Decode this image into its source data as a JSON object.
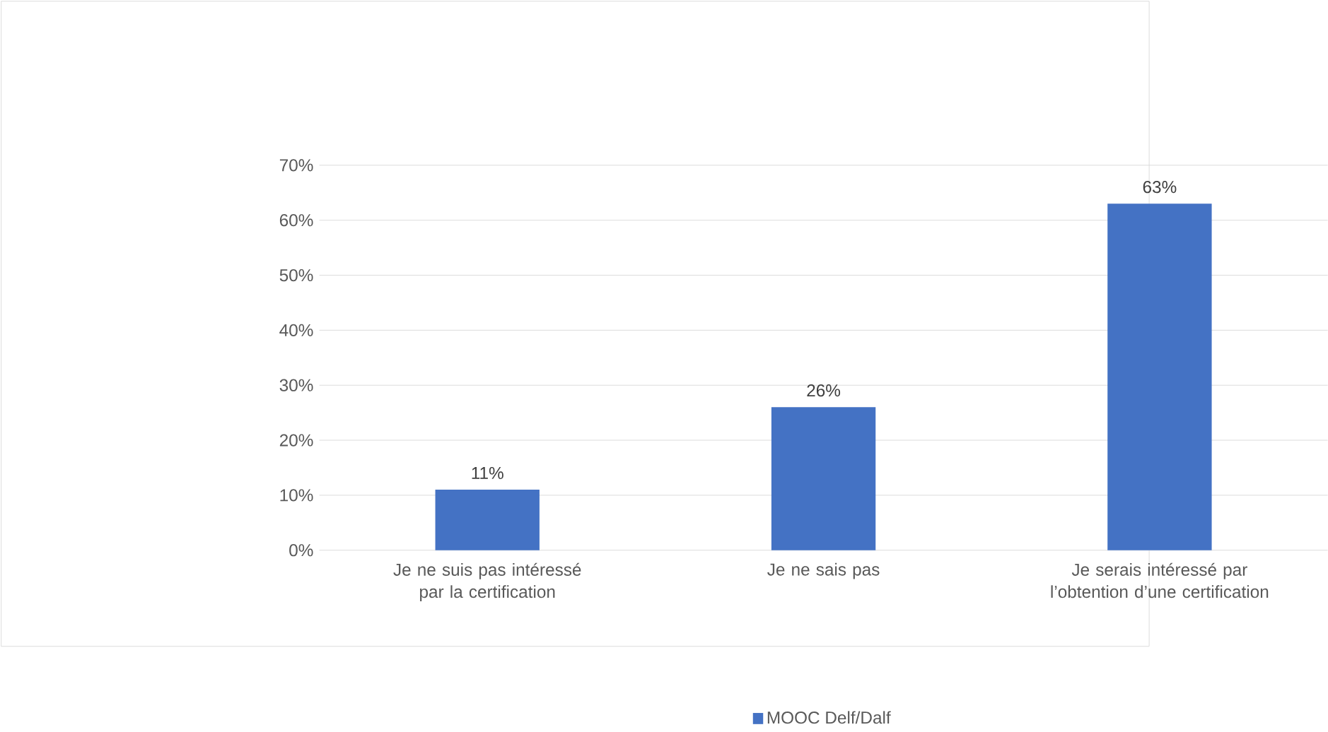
{
  "chart_data": {
    "type": "bar",
    "categories": [
      "Je ne suis pas intéressé par la certification",
      "Je ne sais pas",
      "Je serais intéressé par l’obtention d’une certification"
    ],
    "series": [
      {
        "name": "MOOC Delf/Dalf",
        "color": "#4472c4",
        "values": [
          11,
          26,
          63
        ],
        "value_labels": [
          "11%",
          "26%",
          "63%"
        ]
      }
    ],
    "ylim": [
      0,
      70
    ],
    "yticks": [
      {
        "value": 0,
        "label": "0%"
      },
      {
        "value": 10,
        "label": "10%"
      },
      {
        "value": 20,
        "label": "20%"
      },
      {
        "value": 30,
        "label": "30%"
      },
      {
        "value": 40,
        "label": "40%"
      },
      {
        "value": 50,
        "label": "50%"
      },
      {
        "value": 60,
        "label": "60%"
      },
      {
        "value": 70,
        "label": "70%"
      }
    ],
    "grid": "y",
    "legend": "bottom"
  }
}
